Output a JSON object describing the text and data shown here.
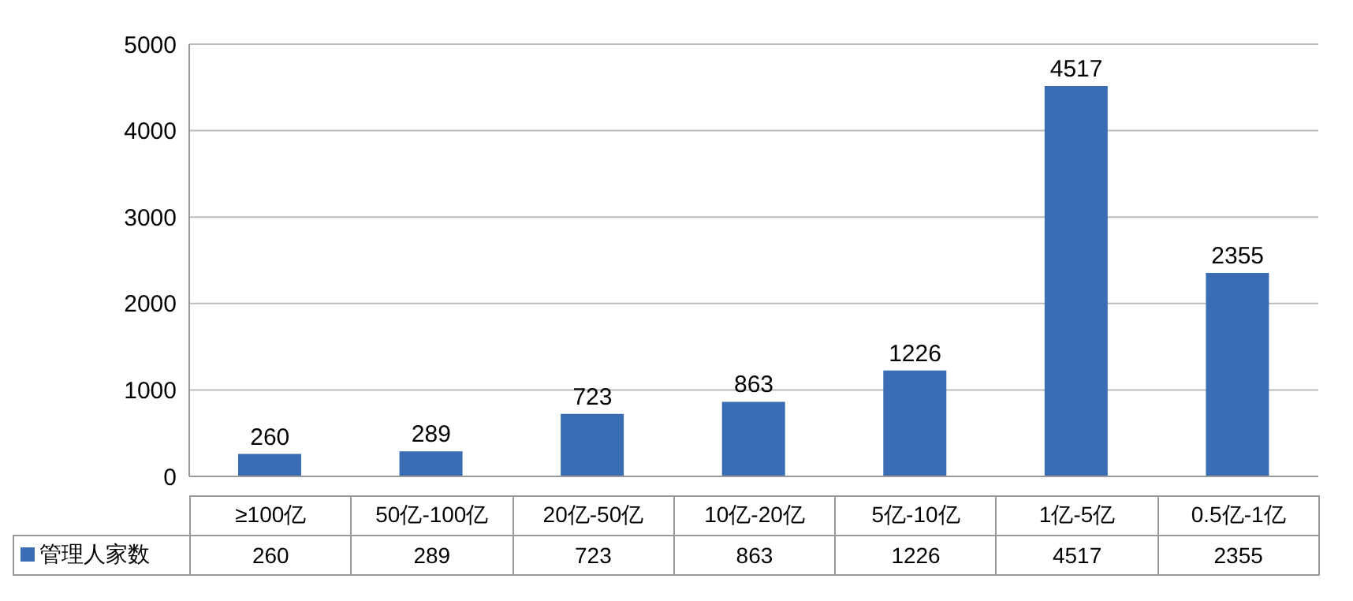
{
  "chart_data": {
    "type": "bar",
    "categories": [
      "≥100亿",
      "50亿-100亿",
      "20亿-50亿",
      "10亿-20亿",
      "5亿-10亿",
      "1亿-5亿",
      "0.5亿-1亿"
    ],
    "series": [
      {
        "name": "管理人家数",
        "color": "#3a6db3",
        "values": [
          260,
          289,
          723,
          863,
          1226,
          4517,
          2355
        ]
      }
    ],
    "ylim": [
      0,
      5000
    ],
    "yticks": [
      0,
      1000,
      2000,
      3000,
      4000,
      5000
    ],
    "grid": "y",
    "data_labels": true,
    "legend": "bottom",
    "annotations": [
      {
        "text": "260",
        "x": "≥100亿",
        "y": 260
      },
      {
        "text": "289",
        "x": "50亿-100亿",
        "y": 289
      },
      {
        "text": "723",
        "x": "20亿-50亿",
        "y": 723
      },
      {
        "text": "863",
        "x": "10亿-20亿",
        "y": 863
      },
      {
        "text": "1226",
        "x": "5亿-10亿",
        "y": 1226
      },
      {
        "text": "4517",
        "x": "1亿-5亿",
        "y": 4517
      },
      {
        "text": "2355",
        "x": "0.5亿-1亿",
        "y": 2355
      }
    ]
  }
}
